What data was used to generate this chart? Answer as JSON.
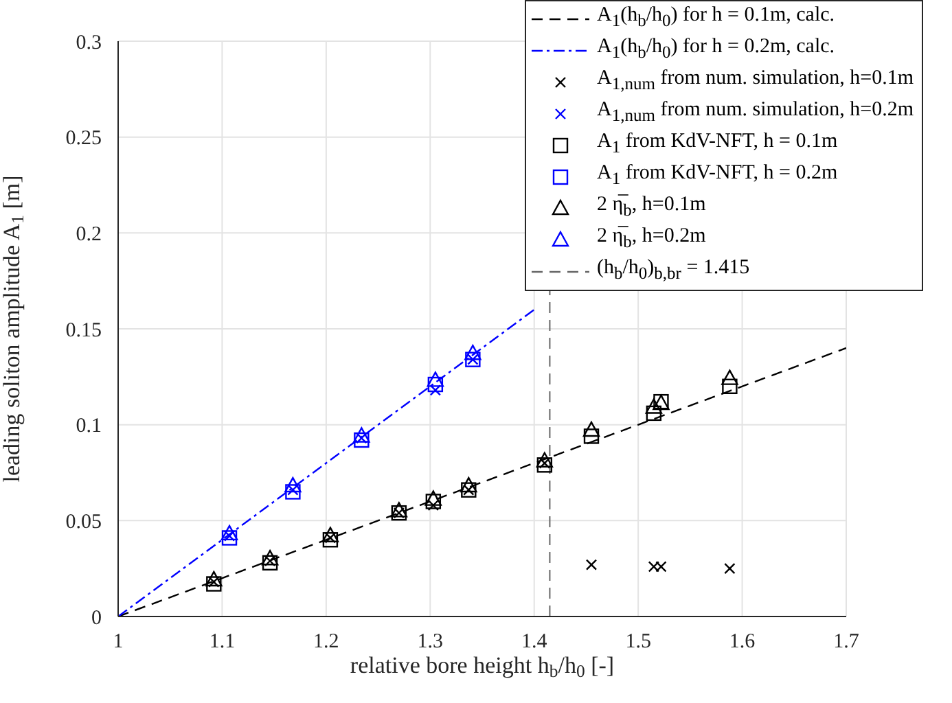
{
  "chart_data": {
    "type": "scatter",
    "xlabel": "relative bore height h$_{b}$/h$_{0}$ [-]",
    "ylabel": "leading soliton amplitude A$_{1}$ [m]",
    "xlim": [
      1,
      1.7
    ],
    "xticks": [
      1,
      1.1,
      1.2,
      1.3,
      1.4,
      1.5,
      1.6,
      1.7
    ],
    "ylim": [
      0,
      0.3
    ],
    "yticks": [
      0,
      0.05,
      0.1,
      0.15,
      0.2,
      0.25,
      0.3
    ],
    "grid": true,
    "legend": "top right",
    "series": [
      {
        "type": "line",
        "name": "A$_{1}$(h$_{b}$/h$_{0}$) for h = 0.1m, calc.",
        "color": "#000000",
        "line_style": "dashed",
        "marker": "none",
        "x": [
          1,
          1.7
        ],
        "values": [
          0,
          0.14
        ]
      },
      {
        "type": "line",
        "name": "A$_{1}$(h$_{b}$/h$_{0}$) for h = 0.2m, calc.",
        "color": "#0000ff",
        "line_style": "dashdot",
        "marker": "none",
        "x": [
          1,
          1.4
        ],
        "values": [
          0,
          0.16
        ]
      },
      {
        "name": "A$_{1,num}$ from num. simulation, h=0.1m",
        "color": "#000000",
        "marker": "cross",
        "x": [
          1.092,
          1.146,
          1.204,
          1.27,
          1.303,
          1.337,
          1.41,
          1.455,
          1.515,
          1.522,
          1.588
        ],
        "values": [
          0.018,
          0.029,
          0.041,
          0.054,
          0.058,
          0.066,
          0.08,
          0.027,
          0.026,
          0.026,
          0.025
        ]
      },
      {
        "name": "A$_{1,num}$ from num. simulation, h=0.2m",
        "color": "#0000ff",
        "marker": "cross",
        "x": [
          1.107,
          1.168,
          1.234,
          1.305,
          1.341
        ],
        "values": [
          0.042,
          0.066,
          0.093,
          0.118,
          0.134
        ]
      },
      {
        "name": "A$_{1}$ from KdV-NFT, h = 0.1m",
        "color": "#000000",
        "marker": "square",
        "x": [
          1.092,
          1.146,
          1.204,
          1.27,
          1.303,
          1.337,
          1.41,
          1.455,
          1.515,
          1.522,
          1.588
        ],
        "values": [
          0.017,
          0.028,
          0.04,
          0.054,
          0.06,
          0.066,
          0.079,
          0.094,
          0.106,
          0.112,
          0.12
        ]
      },
      {
        "name": "A$_{1}$ from KdV-NFT, h = 0.2m",
        "color": "#0000ff",
        "marker": "square",
        "x": [
          1.107,
          1.168,
          1.234,
          1.305,
          1.341
        ],
        "values": [
          0.041,
          0.065,
          0.092,
          0.121,
          0.134
        ]
      },
      {
        "name": "2 η̅$_{b}$, h=0.1m",
        "color": "#000000",
        "marker": "triangle",
        "x": [
          1.092,
          1.146,
          1.204,
          1.27,
          1.303,
          1.337,
          1.41,
          1.455,
          1.515,
          1.522,
          1.588
        ],
        "values": [
          0.019,
          0.03,
          0.042,
          0.055,
          0.061,
          0.068,
          0.081,
          0.097,
          0.109,
          0.111,
          0.124
        ]
      },
      {
        "name": "2 η̅$_{b}$, h=0.2m",
        "color": "#0000ff",
        "marker": "triangle",
        "x": [
          1.107,
          1.168,
          1.234,
          1.305,
          1.341
        ],
        "values": [
          0.043,
          0.068,
          0.094,
          0.123,
          0.137
        ]
      }
    ],
    "ref_lines": [
      {
        "axis": "x",
        "value": 1.415,
        "label": "(h$_{b}$/h$_{0}$)$_{b,br}$ = 1.415",
        "color": "#666666",
        "line_style": "dashed"
      }
    ]
  }
}
